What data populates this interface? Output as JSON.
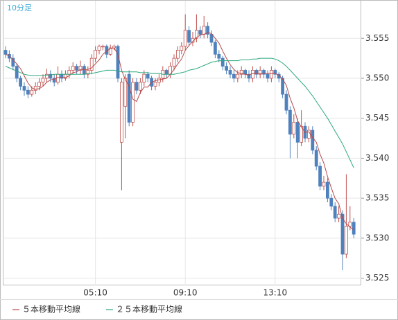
{
  "chart_data": {
    "type": "candlestick",
    "title": "10分足",
    "categories": [
      null,
      null,
      null,
      null,
      null,
      null,
      null,
      null,
      null,
      null,
      null,
      null,
      null,
      null,
      null,
      null,
      null,
      null,
      null,
      null,
      null,
      null,
      null,
      null,
      "05:10",
      null,
      null,
      null,
      null,
      null,
      null,
      null,
      null,
      null,
      null,
      null,
      null,
      null,
      null,
      null,
      null,
      null,
      null,
      null,
      null,
      null,
      null,
      null,
      "09:10",
      null,
      null,
      null,
      null,
      null,
      null,
      null,
      null,
      null,
      null,
      null,
      null,
      null,
      null,
      null,
      null,
      null,
      null,
      null,
      null,
      null,
      null,
      null,
      "13:10",
      null,
      null,
      null,
      null,
      null,
      null,
      null,
      null,
      null,
      null,
      null,
      null,
      null,
      null,
      null,
      null,
      null,
      null,
      null,
      null,
      null
    ],
    "ohlc": [
      [
        3.5535,
        3.554,
        3.5525,
        3.553
      ],
      [
        3.553,
        3.5535,
        3.552,
        3.5525
      ],
      [
        3.5525,
        3.553,
        3.551,
        3.5515
      ],
      [
        3.5515,
        3.5518,
        3.5495,
        3.55
      ],
      [
        3.55,
        3.5503,
        3.5485,
        3.549
      ],
      [
        3.549,
        3.5495,
        3.5478,
        3.5485
      ],
      [
        3.5485,
        3.549,
        3.5475,
        3.548
      ],
      [
        3.548,
        3.549,
        3.5477,
        3.5485
      ],
      [
        3.5485,
        3.5495,
        3.548,
        3.549
      ],
      [
        3.549,
        3.55,
        3.5485,
        3.5495
      ],
      [
        3.5495,
        3.5505,
        3.549,
        3.55
      ],
      [
        3.55,
        3.5512,
        3.5495,
        3.5505
      ],
      [
        3.5505,
        3.551,
        3.5495,
        3.55
      ],
      [
        3.55,
        3.5505,
        3.549,
        3.5495
      ],
      [
        3.5495,
        3.5515,
        3.5492,
        3.5505
      ],
      [
        3.5505,
        3.551,
        3.5495,
        3.55
      ],
      [
        3.55,
        3.551,
        3.5497,
        3.5505
      ],
      [
        3.5505,
        3.5515,
        3.55,
        3.551
      ],
      [
        3.551,
        3.552,
        3.5505,
        3.5515
      ],
      [
        3.5515,
        3.5518,
        3.5505,
        3.551
      ],
      [
        3.551,
        3.5522,
        3.5505,
        3.5515
      ],
      [
        3.5515,
        3.5518,
        3.55,
        3.5505
      ],
      [
        3.5505,
        3.5515,
        3.55,
        3.551
      ],
      [
        3.551,
        3.553,
        3.5505,
        3.5525
      ],
      [
        3.5525,
        3.554,
        3.552,
        3.5535
      ],
      [
        3.5535,
        3.5542,
        3.553,
        3.554
      ],
      [
        3.554,
        3.5542,
        3.5535,
        3.554
      ],
      [
        3.554,
        3.5542,
        3.5525,
        3.553
      ],
      [
        3.553,
        3.5542,
        3.5528,
        3.5538
      ],
      [
        3.5538,
        3.5542,
        3.5535,
        3.554
      ],
      [
        3.554,
        3.5542,
        3.5495,
        3.55
      ],
      [
        3.542,
        3.55,
        3.536,
        3.5495
      ],
      [
        3.5465,
        3.5505,
        3.5425,
        3.55
      ],
      [
        3.5505,
        3.551,
        3.544,
        3.5445
      ],
      [
        3.5445,
        3.55,
        3.544,
        3.5495
      ],
      [
        3.5495,
        3.55,
        3.548,
        3.5485
      ],
      [
        3.5485,
        3.55,
        3.548,
        3.5495
      ],
      [
        3.5495,
        3.551,
        3.549,
        3.5505
      ],
      [
        3.5505,
        3.5508,
        3.5495,
        3.55
      ],
      [
        3.55,
        3.5503,
        3.5485,
        3.549
      ],
      [
        3.549,
        3.55,
        3.5485,
        3.5495
      ],
      [
        3.5495,
        3.5505,
        3.549,
        3.55
      ],
      [
        3.55,
        3.5515,
        3.5495,
        3.551
      ],
      [
        3.551,
        3.5512,
        3.55,
        3.5505
      ],
      [
        3.5505,
        3.552,
        3.55,
        3.5515
      ],
      [
        3.5515,
        3.553,
        3.551,
        3.5525
      ],
      [
        3.5525,
        3.554,
        3.552,
        3.5535
      ],
      [
        3.5535,
        3.5545,
        3.553,
        3.554
      ],
      [
        3.554,
        3.558,
        3.5535,
        3.556
      ],
      [
        3.556,
        3.5565,
        3.554,
        3.5545
      ],
      [
        3.5545,
        3.5558,
        3.554,
        3.555
      ],
      [
        3.555,
        3.558,
        3.5545,
        3.556
      ],
      [
        3.556,
        3.5565,
        3.555,
        3.5555
      ],
      [
        3.5555,
        3.5578,
        3.555,
        3.5565
      ],
      [
        3.5565,
        3.557,
        3.555,
        3.5555
      ],
      [
        3.5555,
        3.556,
        3.554,
        3.5545
      ],
      [
        3.5545,
        3.5548,
        3.5525,
        3.553
      ],
      [
        3.553,
        3.5535,
        3.552,
        3.5525
      ],
      [
        3.5525,
        3.5528,
        3.551,
        3.5515
      ],
      [
        3.5515,
        3.552,
        3.5505,
        3.551
      ],
      [
        3.551,
        3.5515,
        3.55,
        3.5505
      ],
      [
        3.5505,
        3.551,
        3.5495,
        3.55
      ],
      [
        3.55,
        3.551,
        3.5495,
        3.5505
      ],
      [
        3.5505,
        3.5515,
        3.55,
        3.551
      ],
      [
        3.551,
        3.5512,
        3.55,
        3.5505
      ],
      [
        3.5505,
        3.551,
        3.5495,
        3.55
      ],
      [
        3.55,
        3.5515,
        3.5495,
        3.551
      ],
      [
        3.551,
        3.5512,
        3.55,
        3.5505
      ],
      [
        3.5505,
        3.5515,
        3.55,
        3.551
      ],
      [
        3.551,
        3.5512,
        3.55,
        3.5505
      ],
      [
        3.5505,
        3.551,
        3.5495,
        3.55
      ],
      [
        3.55,
        3.5515,
        3.5495,
        3.551
      ],
      [
        3.551,
        3.5512,
        3.55,
        3.5505
      ],
      [
        3.5505,
        3.5508,
        3.5495,
        3.55
      ],
      [
        3.55,
        3.5503,
        3.5475,
        3.548
      ],
      [
        3.548,
        3.5485,
        3.5455,
        3.546
      ],
      [
        3.546,
        3.5465,
        3.54,
        3.543
      ],
      [
        3.543,
        3.5455,
        3.5425,
        3.5445
      ],
      [
        3.5445,
        3.545,
        3.54,
        3.542
      ],
      [
        3.542,
        3.546,
        3.5415,
        3.544
      ],
      [
        3.544,
        3.5445,
        3.542,
        3.5425
      ],
      [
        3.5425,
        3.544,
        3.542,
        3.5435
      ],
      [
        3.5435,
        3.544,
        3.5405,
        3.541
      ],
      [
        3.541,
        3.5415,
        3.5385,
        3.539
      ],
      [
        3.539,
        3.5395,
        3.536,
        3.5365
      ],
      [
        3.5365,
        3.5378,
        3.536,
        3.537
      ],
      [
        3.537,
        3.5375,
        3.5345,
        3.535
      ],
      [
        3.535,
        3.5355,
        3.5335,
        3.534
      ],
      [
        3.534,
        3.5345,
        3.532,
        3.5325
      ],
      [
        3.5325,
        3.534,
        3.532,
        3.533
      ],
      [
        3.533,
        3.5335,
        3.526,
        3.528
      ],
      [
        3.528,
        3.538,
        3.5275,
        3.5315
      ],
      [
        3.5315,
        3.534,
        3.531,
        3.532
      ],
      [
        3.532,
        3.5325,
        3.53,
        3.5305
      ]
    ],
    "up_color": "#c0504d",
    "down_color": "#4f81bd",
    "series": [
      {
        "name": "５本移動平均線",
        "color": "#b5494a",
        "values": [
          3.553,
          3.5528,
          3.5523,
          3.5518,
          3.5512,
          3.5503,
          3.5494,
          3.5488,
          3.5486,
          3.5487,
          3.549,
          3.5495,
          3.5498,
          3.5499,
          3.5501,
          3.5501,
          3.5501,
          3.5503,
          3.5507,
          3.5508,
          3.5511,
          3.5511,
          3.5511,
          3.5513,
          3.5518,
          3.5523,
          3.553,
          3.5534,
          3.5537,
          3.5538,
          3.553,
          3.551,
          3.5498,
          3.549,
          3.5474,
          3.5471,
          3.5482,
          3.5489,
          3.5489,
          3.5495,
          3.5497,
          3.5498,
          3.5499,
          3.55,
          3.5505,
          3.5511,
          3.5518,
          3.5524,
          3.5535,
          3.5541,
          3.5546,
          3.5551,
          3.5554,
          3.5555,
          3.5557,
          3.5556,
          3.555,
          3.5544,
          3.5534,
          3.5525,
          3.5517,
          3.5511,
          3.5507,
          3.5506,
          3.5505,
          3.5504,
          3.5506,
          3.5506,
          3.5506,
          3.5506,
          3.5506,
          3.5506,
          3.5506,
          3.5504,
          3.5499,
          3.5491,
          3.5475,
          3.5463,
          3.5447,
          3.5439,
          3.5432,
          3.5433,
          3.5426,
          3.542,
          3.5405,
          3.5394,
          3.5377,
          3.5363,
          3.535,
          3.5343,
          3.5325,
          3.5318,
          3.5314,
          3.531
        ]
      },
      {
        "name": "２５本移動平均線",
        "color": "#2aa87c",
        "values": [
          3.5515,
          3.5513,
          3.5511,
          3.5509,
          3.5507,
          3.5505,
          3.5504,
          3.5503,
          3.5503,
          3.5503,
          3.5503,
          3.5504,
          3.5504,
          3.5505,
          3.5505,
          3.5505,
          3.5505,
          3.5505,
          3.5505,
          3.5505,
          3.5505,
          3.5505,
          3.5506,
          3.5506,
          3.5507,
          3.5508,
          3.5509,
          3.551,
          3.551,
          3.551,
          3.5509,
          3.5508,
          3.5508,
          3.5508,
          3.5508,
          3.5508,
          3.5507,
          3.5507,
          3.5507,
          3.5506,
          3.5506,
          3.5506,
          3.5505,
          3.5505,
          3.5505,
          3.5505,
          3.5506,
          3.5507,
          3.5508,
          3.551,
          3.5511,
          3.5512,
          3.5514,
          3.5516,
          3.5518,
          3.552,
          3.5521,
          3.5522,
          3.5522,
          3.5522,
          3.5522,
          3.5522,
          3.5522,
          3.5523,
          3.5523,
          3.5523,
          3.5524,
          3.5524,
          3.5525,
          3.5525,
          3.5525,
          3.5525,
          3.5524,
          3.5522,
          3.5519,
          3.5515,
          3.551,
          3.5505,
          3.55,
          3.5495,
          3.549,
          3.5484,
          3.5478,
          3.5471,
          3.5464,
          3.5457,
          3.545,
          3.5442,
          3.5434,
          3.5426,
          3.5418,
          3.5408,
          3.5398,
          3.5388
        ]
      }
    ],
    "ylim": [
      3.5241,
      3.5597
    ],
    "yticks": [
      3.525,
      {
        "value": 3.53,
        "label": "3.530"
      },
      3.535,
      {
        "value": 3.54,
        "label": "3.540"
      },
      3.545,
      {
        "value": 3.55,
        "label": "3.550"
      },
      3.555
    ],
    "grid": true
  }
}
